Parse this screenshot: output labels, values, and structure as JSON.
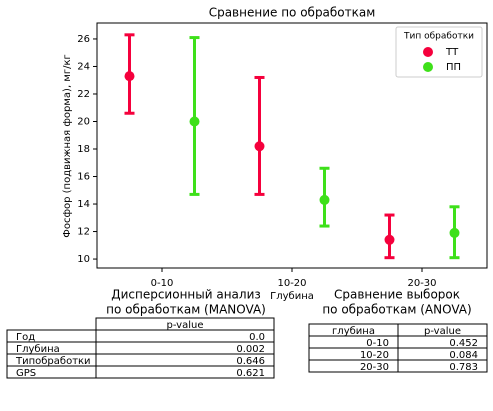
{
  "chart_data": {
    "type": "pointplot",
    "title": "Сравнение по обработкам",
    "xlabel": "Глубина",
    "ylabel": "Фосфор (подвижная форма), мг/кг",
    "categories": [
      "0-10",
      "10-20",
      "20-30"
    ],
    "legend_title": "Тип обработки",
    "legend": "upper right",
    "series": [
      {
        "name": "ТТ",
        "color": "#f5003c",
        "values": [
          23.3,
          18.2,
          11.4
        ],
        "ci_low": [
          20.6,
          14.7,
          10.1
        ],
        "ci_high": [
          26.3,
          23.2,
          13.2
        ]
      },
      {
        "name": "ПП",
        "color": "#3ee01a",
        "values": [
          20.0,
          14.3,
          11.9
        ],
        "ci_low": [
          14.7,
          12.4,
          10.1
        ],
        "ci_high": [
          26.1,
          16.6,
          13.8
        ]
      }
    ],
    "ylim": [
      9.35,
      27.16
    ],
    "yticks": [
      10,
      12,
      14,
      16,
      18,
      20,
      22,
      24,
      26
    ],
    "grid": false
  },
  "tables": [
    {
      "title": [
        "Дисперсионный анализ",
        "по обработкам (MANOVA)"
      ],
      "header": [
        "p-value"
      ],
      "rows": [
        [
          "Год",
          "0.0"
        ],
        [
          "Глубина",
          "0.002"
        ],
        [
          "Типобработки",
          "0.646"
        ],
        [
          "GPS",
          "0.621"
        ]
      ]
    },
    {
      "title": [
        "Сравнение выборок",
        "по обработкам (ANOVA)"
      ],
      "header": [
        "глубина",
        "p-value"
      ],
      "rows": [
        [
          "0-10",
          "0.452"
        ],
        [
          "10-20",
          "0.084"
        ],
        [
          "20-30",
          "0.783"
        ]
      ]
    }
  ]
}
